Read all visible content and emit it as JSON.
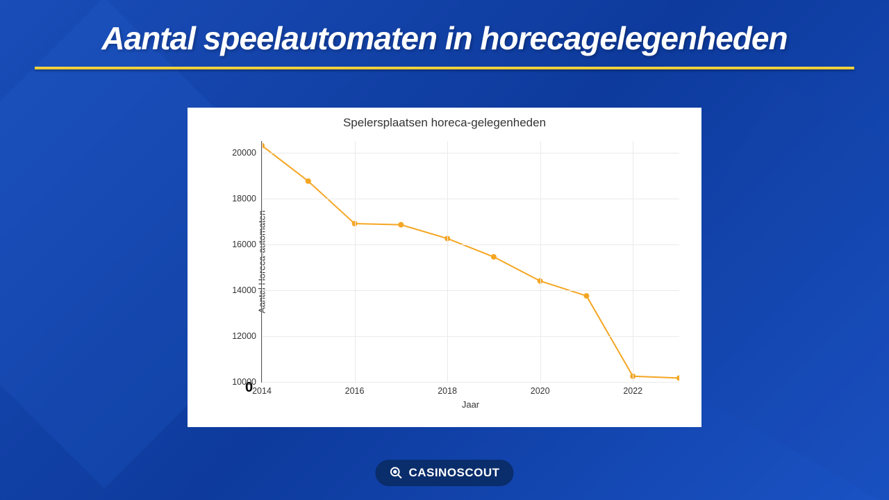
{
  "header": {
    "title": "Aantal speelautomaten in horecagelegenheden"
  },
  "chart": {
    "type": "line",
    "title": "Spelersplaatsen horeca-gelegenheden",
    "xlabel": "Jaar",
    "ylabel": "Aantal Horeca-automaten",
    "zero_label": "0",
    "x_values": [
      2014,
      2015,
      2016,
      2017,
      2018,
      2019,
      2020,
      2021,
      2022,
      2023
    ],
    "y_values": [
      20300,
      18750,
      16900,
      16850,
      16250,
      15450,
      14400,
      13750,
      10250,
      10170
    ],
    "xlim": [
      2014,
      2023
    ],
    "ylim": [
      10000,
      20500
    ],
    "xtick_step": 2,
    "ytick_step": 2000,
    "xtick_labels": [
      "2014",
      "2016",
      "2018",
      "2020",
      "2022"
    ],
    "ytick_labels": [
      "10000",
      "12000",
      "14000",
      "16000",
      "18000",
      "20000"
    ],
    "line_color": "#f5a623",
    "marker_color": "#f5a623",
    "marker_size": 4,
    "line_width": 2,
    "background_color": "#ffffff",
    "grid_color": "#eaeaea",
    "axis_color": "#555555",
    "title_fontsize": 17,
    "label_fontsize": 13,
    "tick_fontsize": 12.5
  },
  "branding": {
    "logo_text": "CASINOSCOUT",
    "badge_bg": "#0a2d6b",
    "badge_fg": "#ffffff"
  },
  "page_bg_colors": [
    "#1a4db8",
    "#0d3a9c",
    "#1a52c4"
  ],
  "divider_color": "#f5d547"
}
